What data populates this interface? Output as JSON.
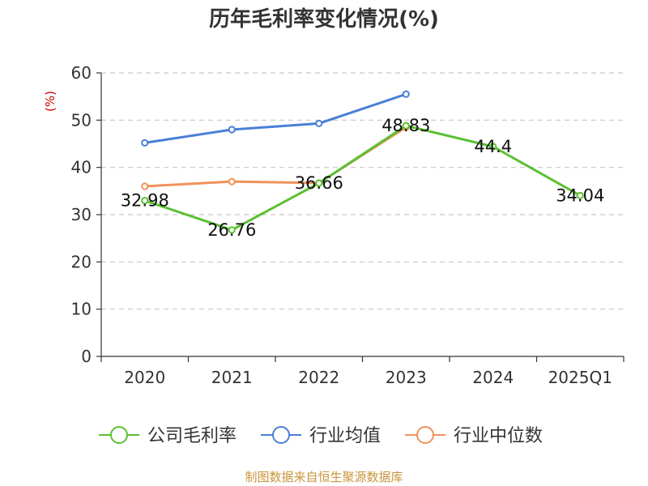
{
  "chart_data": {
    "type": "line",
    "title": "历年毛利率变化情况(%)",
    "ylabel": "(%)",
    "categories": [
      "2020",
      "2021",
      "2022",
      "2023",
      "2024",
      "2025Q1"
    ],
    "ylim": [
      0,
      60
    ],
    "yticks": [
      "0",
      "10",
      "20",
      "30",
      "40",
      "50",
      "60"
    ],
    "grid": true,
    "legend_position": "bottom",
    "series": [
      {
        "name": "公司毛利率",
        "color": "#5cc033",
        "values": [
          32.98,
          26.76,
          36.66,
          48.83,
          44.4,
          34.04
        ],
        "labels": [
          "32.98",
          "26.76",
          "36.66",
          "48.83",
          "44.4",
          "34.04"
        ]
      },
      {
        "name": "行业均值",
        "color": "#4a7fd6",
        "values": [
          45.2,
          48.0,
          49.3,
          55.5,
          null,
          null
        ]
      },
      {
        "name": "行业中位数",
        "color": "#f0935a",
        "values": [
          36.0,
          37.0,
          36.7,
          48.5,
          null,
          null
        ]
      }
    ]
  },
  "source": "制图数据来自恒生聚源数据库"
}
